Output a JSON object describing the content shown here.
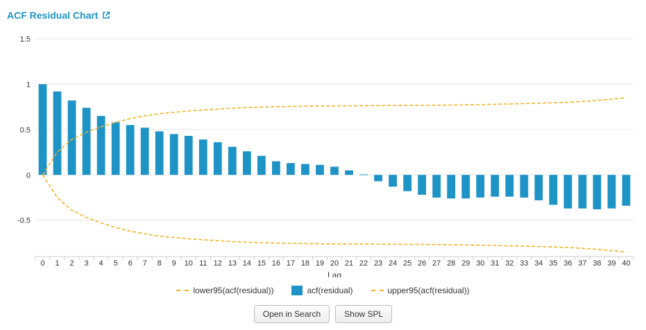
{
  "panel": {
    "title": "ACF Residual Chart",
    "icon": "external-link-icon"
  },
  "colors": {
    "bar": "#1e93c6",
    "bounds": "#f0b323",
    "title": "#1e93c6",
    "grid": "#e6e6e6"
  },
  "buttons": {
    "open_in_search": "Open in Search",
    "show_spl": "Show SPL"
  },
  "chart_data": {
    "type": "bar",
    "xlabel": "Lag",
    "ylabel": "",
    "ylim": [
      -0.9,
      1.5
    ],
    "yticks": [
      {
        "value": 1.5,
        "label": "1.5"
      },
      {
        "value": 1,
        "label": "1"
      },
      {
        "value": 0.5,
        "label": "0.5"
      },
      {
        "value": 0,
        "label": "0"
      },
      {
        "value": -0.5,
        "label": "-0.5"
      }
    ],
    "grid": true,
    "legend_position": "bottom",
    "categories": [
      "0",
      "1",
      "2",
      "3",
      "4",
      "5",
      "6",
      "7",
      "8",
      "9",
      "10",
      "11",
      "12",
      "13",
      "14",
      "15",
      "16",
      "17",
      "18",
      "19",
      "20",
      "21",
      "22",
      "23",
      "24",
      "25",
      "26",
      "27",
      "28",
      "29",
      "30",
      "31",
      "32",
      "33",
      "34",
      "35",
      "36",
      "37",
      "38",
      "39",
      "40"
    ],
    "series": [
      {
        "name": "lower95(acf(residual))",
        "kind": "line",
        "style": "dashed",
        "values": [
          0,
          -0.25,
          -0.39,
          -0.47,
          -0.53,
          -0.58,
          -0.62,
          -0.65,
          -0.675,
          -0.69,
          -0.705,
          -0.715,
          -0.725,
          -0.735,
          -0.742,
          -0.748,
          -0.752,
          -0.755,
          -0.757,
          -0.759,
          -0.761,
          -0.762,
          -0.763,
          -0.764,
          -0.765,
          -0.766,
          -0.767,
          -0.768,
          -0.77,
          -0.772,
          -0.775,
          -0.778,
          -0.782,
          -0.786,
          -0.79,
          -0.795,
          -0.8,
          -0.81,
          -0.82,
          -0.835,
          -0.85
        ]
      },
      {
        "name": "acf(residual)",
        "kind": "bar",
        "values": [
          1.0,
          0.92,
          0.82,
          0.74,
          0.65,
          0.58,
          0.55,
          0.52,
          0.48,
          0.45,
          0.43,
          0.39,
          0.36,
          0.31,
          0.26,
          0.21,
          0.15,
          0.13,
          0.12,
          0.11,
          0.09,
          0.05,
          0.005,
          -0.07,
          -0.13,
          -0.18,
          -0.22,
          -0.25,
          -0.26,
          -0.26,
          -0.25,
          -0.24,
          -0.24,
          -0.25,
          -0.28,
          -0.33,
          -0.37,
          -0.37,
          -0.38,
          -0.37,
          -0.34
        ]
      },
      {
        "name": "upper95(acf(residual))",
        "kind": "line",
        "style": "dashed",
        "values": [
          0,
          0.25,
          0.39,
          0.47,
          0.53,
          0.58,
          0.62,
          0.65,
          0.675,
          0.69,
          0.705,
          0.715,
          0.725,
          0.735,
          0.742,
          0.748,
          0.752,
          0.755,
          0.757,
          0.759,
          0.761,
          0.762,
          0.763,
          0.764,
          0.765,
          0.766,
          0.767,
          0.768,
          0.77,
          0.772,
          0.775,
          0.778,
          0.782,
          0.786,
          0.79,
          0.795,
          0.8,
          0.81,
          0.82,
          0.835,
          0.85
        ]
      }
    ]
  }
}
